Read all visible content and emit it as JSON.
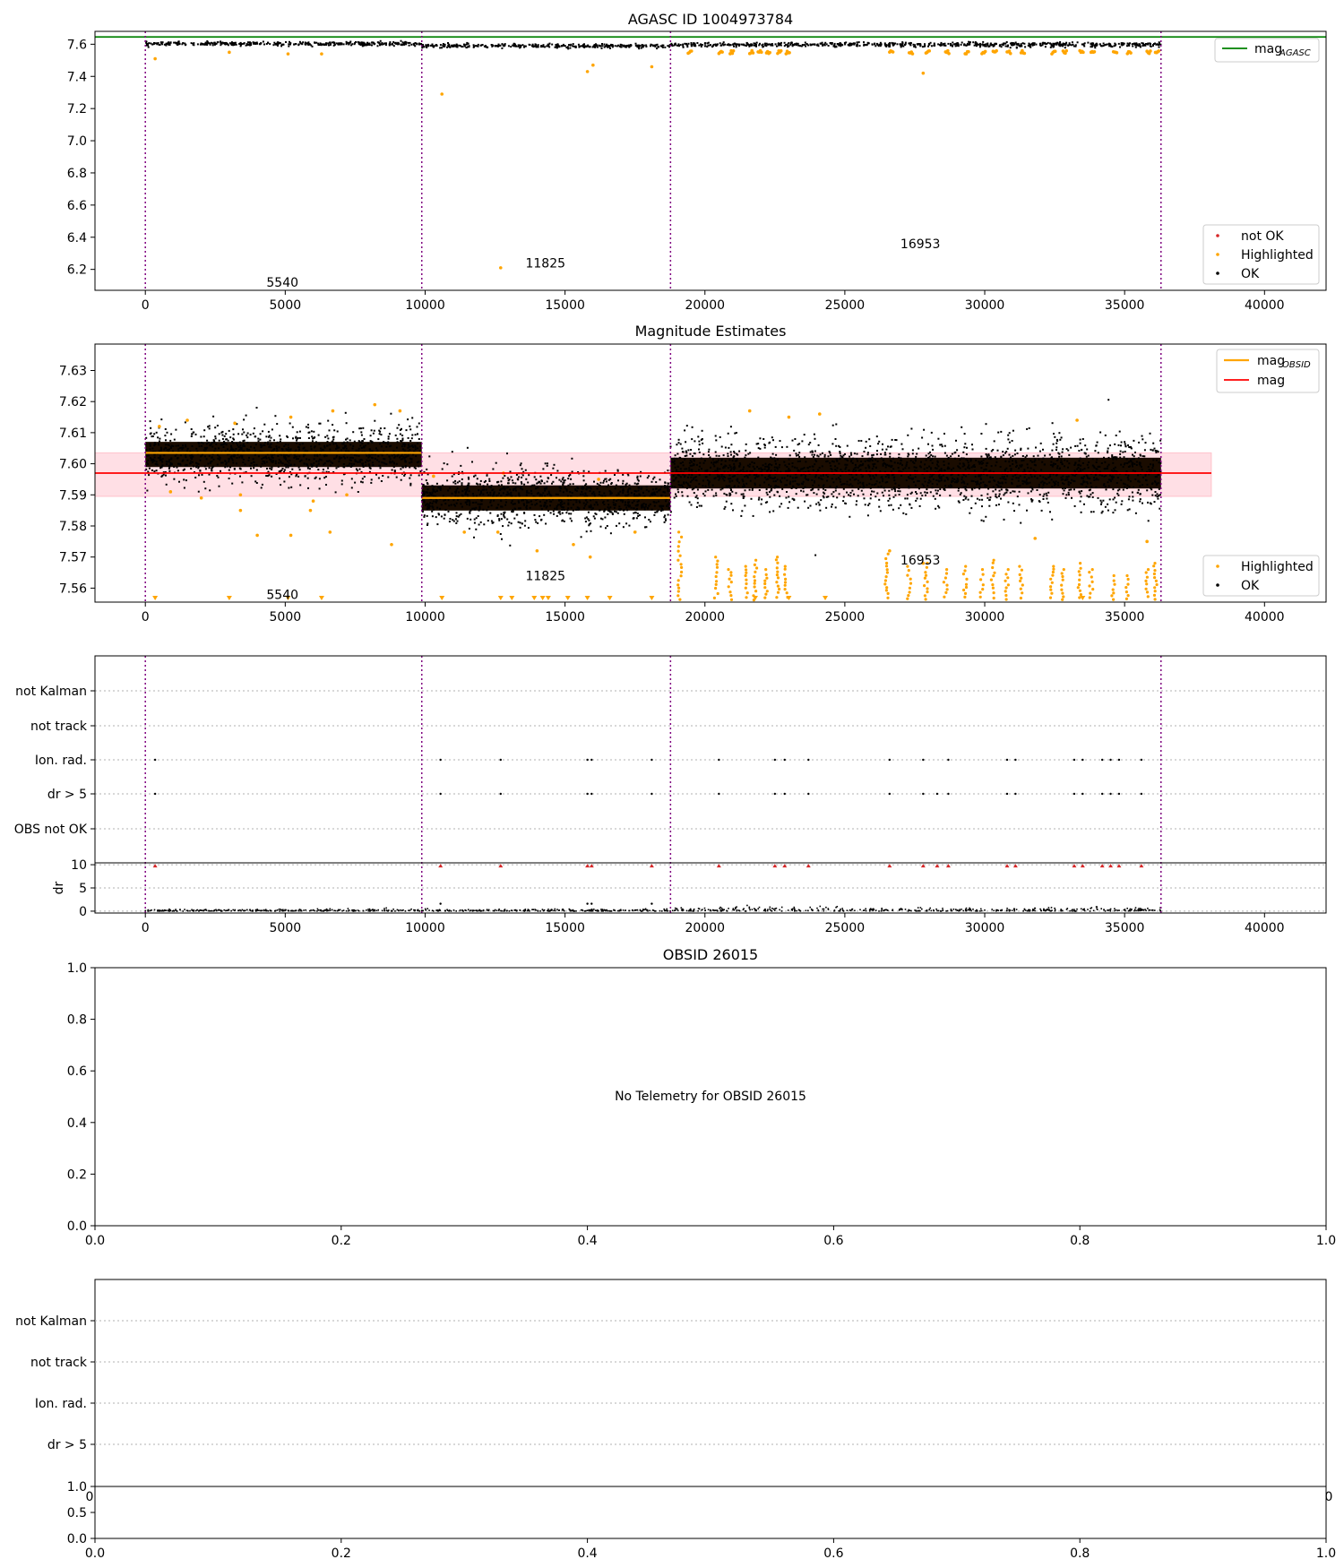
{
  "colors": {
    "ok": "#000000",
    "highlighted": "#ffa500",
    "not_ok": "#d62728",
    "agasc_line": "#008000",
    "mag_line": "#ff0000",
    "mag_band": "#ffc0cb",
    "mag_obsid": "#ffa500",
    "obs_boundary": "#800080"
  },
  "chart_data": [
    {
      "type": "scatter",
      "title": "AGASC ID 1004973784",
      "xlim": [
        -1800,
        42200
      ],
      "ylim": [
        6.07,
        7.68
      ],
      "xticks": [
        0,
        5000,
        10000,
        15000,
        20000,
        25000,
        30000,
        35000,
        40000
      ],
      "yticks": [
        6.2,
        6.4,
        6.6,
        6.8,
        7.0,
        7.2,
        7.4,
        7.6
      ],
      "ytick_labels": [
        "6.2",
        "6.4",
        "6.6",
        "6.8",
        "7.0",
        "7.2",
        "7.4",
        "7.6"
      ],
      "mag_agasc": 7.645,
      "obs_boundaries": [
        0,
        9880,
        18770,
        36300
      ],
      "segments": [
        {
          "x0": 0,
          "x1": 9880,
          "level": 7.603,
          "spread": 0.006
        },
        {
          "x0": 9880,
          "x1": 18770,
          "level": 7.589,
          "spread": 0.006
        },
        {
          "x0": 18770,
          "x1": 36300,
          "level": 7.597,
          "spread": 0.007
        }
      ],
      "obs_labels": [
        {
          "text": "5540",
          "x": 4900,
          "y": 6.12
        },
        {
          "text": "11825",
          "x": 14300,
          "y": 6.24
        },
        {
          "text": "16953",
          "x": 27700,
          "y": 6.36
        }
      ],
      "highlighted_points": [
        {
          "x": 350,
          "y": 7.51
        },
        {
          "x": 3000,
          "y": 7.55
        },
        {
          "x": 5100,
          "y": 7.54
        },
        {
          "x": 6300,
          "y": 7.54
        },
        {
          "x": 10600,
          "y": 7.29
        },
        {
          "x": 12700,
          "y": 6.21
        },
        {
          "x": 15800,
          "y": 7.43
        },
        {
          "x": 16000,
          "y": 7.47
        },
        {
          "x": 18100,
          "y": 7.46
        },
        {
          "x": 27800,
          "y": 7.42
        }
      ],
      "legend_top": [
        {
          "label": "mag",
          "sub": "AGASC"
        }
      ],
      "legend_bottom": [
        "not OK",
        "Highlighted",
        "OK"
      ]
    },
    {
      "type": "scatter",
      "title": "Magnitude Estimates",
      "xlim": [
        -1800,
        42200
      ],
      "ylim": [
        7.5555,
        7.6385
      ],
      "xticks": [
        0,
        5000,
        10000,
        15000,
        20000,
        25000,
        30000,
        35000,
        40000
      ],
      "yticks": [
        7.56,
        7.57,
        7.58,
        7.59,
        7.6,
        7.61,
        7.62,
        7.63
      ],
      "ytick_labels": [
        "7.56",
        "7.57",
        "7.58",
        "7.59",
        "7.60",
        "7.61",
        "7.62",
        "7.63"
      ],
      "mag": 7.597,
      "mag_band": [
        7.5895,
        7.6035
      ],
      "mag_line_x": [
        -1800,
        38100
      ],
      "mag_obsid": [
        {
          "x0": 0,
          "x1": 9880,
          "y": 7.6035
        },
        {
          "x0": 9880,
          "x1": 18770,
          "y": 7.589
        }
      ],
      "obs_boundaries": [
        0,
        9880,
        18770,
        36300
      ],
      "segments": [
        {
          "x0": 0,
          "x1": 9880,
          "level": 7.603,
          "spread": 0.0045
        },
        {
          "x0": 9880,
          "x1": 18770,
          "level": 7.589,
          "spread": 0.0045
        },
        {
          "x0": 18770,
          "x1": 36300,
          "level": 7.597,
          "spread": 0.0055
        }
      ],
      "obs_labels": [
        {
          "text": "5540",
          "x": 4900,
          "y": 7.558
        },
        {
          "text": "11825",
          "x": 14300,
          "y": 7.564
        },
        {
          "text": "16953",
          "x": 27700,
          "y": 7.569
        }
      ],
      "highlighted_points": [
        {
          "x": 500,
          "y": 7.612
        },
        {
          "x": 1500,
          "y": 7.614
        },
        {
          "x": 3200,
          "y": 7.613
        },
        {
          "x": 5200,
          "y": 7.615
        },
        {
          "x": 6700,
          "y": 7.617
        },
        {
          "x": 8200,
          "y": 7.619
        },
        {
          "x": 9100,
          "y": 7.617
        },
        {
          "x": 900,
          "y": 7.591
        },
        {
          "x": 2000,
          "y": 7.589
        },
        {
          "x": 3400,
          "y": 7.59
        },
        {
          "x": 6000,
          "y": 7.588
        },
        {
          "x": 7200,
          "y": 7.59
        },
        {
          "x": 3400,
          "y": 7.585
        },
        {
          "x": 5900,
          "y": 7.585
        },
        {
          "x": 6600,
          "y": 7.578
        },
        {
          "x": 4000,
          "y": 7.577
        },
        {
          "x": 5200,
          "y": 7.577
        },
        {
          "x": 8800,
          "y": 7.574
        },
        {
          "x": 10300,
          "y": 7.596
        },
        {
          "x": 11400,
          "y": 7.578
        },
        {
          "x": 12600,
          "y": 7.578
        },
        {
          "x": 14000,
          "y": 7.572
        },
        {
          "x": 15300,
          "y": 7.574
        },
        {
          "x": 15900,
          "y": 7.57
        },
        {
          "x": 17500,
          "y": 7.578
        },
        {
          "x": 12800,
          "y": 7.597
        },
        {
          "x": 16200,
          "y": 7.595
        },
        {
          "x": 21600,
          "y": 7.617
        },
        {
          "x": 23000,
          "y": 7.615
        },
        {
          "x": 24100,
          "y": 7.616
        },
        {
          "x": 33300,
          "y": 7.614
        },
        {
          "x": 35800,
          "y": 7.575
        },
        {
          "x": 31800,
          "y": 7.576
        },
        {
          "x": 27800,
          "y": 7.568
        },
        {
          "x": 26600,
          "y": 7.572
        }
      ],
      "highlighted_clusters": [
        {
          "x": 19100,
          "ytop": 7.578
        },
        {
          "x": 20400,
          "ytop": 7.57
        },
        {
          "x": 20900,
          "ytop": 7.566
        },
        {
          "x": 21500,
          "ytop": 7.567
        },
        {
          "x": 21800,
          "ytop": 7.569
        },
        {
          "x": 22200,
          "ytop": 7.566
        },
        {
          "x": 22600,
          "ytop": 7.57
        },
        {
          "x": 22900,
          "ytop": 7.567
        },
        {
          "x": 26500,
          "ytop": 7.571
        },
        {
          "x": 27300,
          "ytop": 7.567
        },
        {
          "x": 27900,
          "ytop": 7.568
        },
        {
          "x": 28600,
          "ytop": 7.566
        },
        {
          "x": 29300,
          "ytop": 7.567
        },
        {
          "x": 29900,
          "ytop": 7.566
        },
        {
          "x": 30300,
          "ytop": 7.569
        },
        {
          "x": 30800,
          "ytop": 7.566
        },
        {
          "x": 31300,
          "ytop": 7.567
        },
        {
          "x": 32400,
          "ytop": 7.567
        },
        {
          "x": 32800,
          "ytop": 7.566
        },
        {
          "x": 33400,
          "ytop": 7.568
        },
        {
          "x": 33800,
          "ytop": 7.566
        },
        {
          "x": 34600,
          "ytop": 7.564
        },
        {
          "x": 35100,
          "ytop": 7.564
        },
        {
          "x": 35800,
          "ytop": 7.566
        },
        {
          "x": 36100,
          "ytop": 7.568
        }
      ],
      "clipped_triangles": [
        350,
        3000,
        5100,
        6300,
        10600,
        12700,
        13100,
        13900,
        14200,
        14400,
        15100,
        15800,
        16600,
        18100,
        21800,
        23000,
        24300,
        33500
      ],
      "legend_top": [
        {
          "label": "mag",
          "sub": "OBSID"
        },
        {
          "label": "mag",
          "sub": ""
        }
      ],
      "legend_bottom": [
        "Highlighted",
        "OK"
      ]
    },
    {
      "type": "scatter",
      "title": "",
      "xlim": [
        -1800,
        42200
      ],
      "xticks": [
        0,
        5000,
        10000,
        15000,
        20000,
        25000,
        30000,
        35000,
        40000
      ],
      "flags": [
        "not Kalman",
        "not track",
        "Ion. rad.",
        "dr > 5",
        "OBS not OK"
      ],
      "flag_events": [
        350,
        10550,
        12700,
        15800,
        15950,
        18100,
        20500,
        22500,
        22850,
        23700,
        26600,
        27800,
        28700,
        30800,
        31100,
        33200,
        33500,
        34200,
        34500,
        34800,
        35600
      ],
      "dr_only_events": [
        28300
      ],
      "obs_boundaries": [
        0,
        9880,
        18770,
        36300
      ],
      "dr_ylim": [
        -0.4,
        10.4
      ],
      "dr_yticks": [
        0,
        5,
        10
      ],
      "dr_ylabel": "dr"
    },
    {
      "type": "scatter",
      "title": "OBSID 26015",
      "xlim": [
        0,
        1
      ],
      "ylim": [
        0,
        1
      ],
      "xticks": [
        0.0,
        0.2,
        0.4,
        0.6,
        0.8,
        1.0
      ],
      "xtick_labels": [
        "0.0",
        "0.2",
        "0.4",
        "0.6",
        "0.8",
        "1.0"
      ],
      "yticks": [
        0.0,
        0.2,
        0.4,
        0.6,
        0.8,
        1.0
      ],
      "ytick_labels": [
        "0.0",
        "0.2",
        "0.4",
        "0.6",
        "0.8",
        "1.0"
      ],
      "message": "No Telemetry for OBSID 26015"
    },
    {
      "type": "scatter",
      "title": "",
      "flags": [
        "not Kalman",
        "not track",
        "Ion. rad.",
        "dr > 5"
      ],
      "overflow_tick_labels": [
        "0",
        "0"
      ],
      "xlim": [
        0,
        1
      ],
      "ylim": [
        0,
        1
      ],
      "xticks": [
        0.0,
        0.2,
        0.4,
        0.6,
        0.8,
        1.0
      ],
      "xtick_labels": [
        "0.0",
        "0.2",
        "0.4",
        "0.6",
        "0.8",
        "1.0"
      ],
      "yticks": [
        0.0,
        0.5,
        1.0
      ],
      "ytick_labels": [
        "0.0",
        "0.5",
        "1.0"
      ]
    }
  ]
}
